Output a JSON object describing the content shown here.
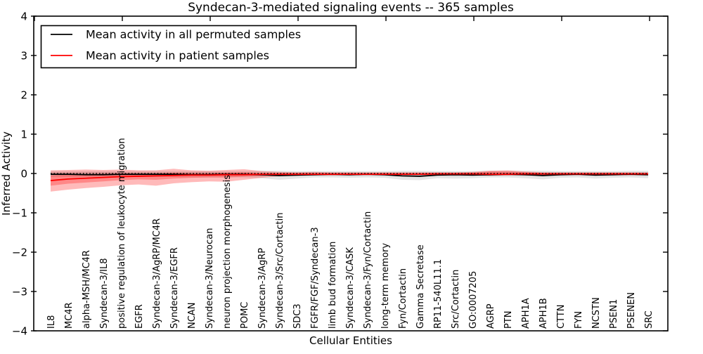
{
  "chart_data": {
    "type": "line",
    "title": "Syndecan-3-mediated signaling events -- 365 samples",
    "xlabel": "Cellular Entities",
    "ylabel": "Inferred Activity",
    "ylim": [
      -4,
      4
    ],
    "grid": false,
    "legend_position": "upper left",
    "yticks": [
      {
        "value": 4,
        "label": "4"
      },
      {
        "value": 3,
        "label": "3"
      },
      {
        "value": 2,
        "label": "2"
      },
      {
        "value": 1,
        "label": "1"
      },
      {
        "value": 0,
        "label": "0"
      },
      {
        "value": -1,
        "label": "−1"
      },
      {
        "value": -2,
        "label": "−2"
      },
      {
        "value": -3,
        "label": "−3"
      },
      {
        "value": -4,
        "label": "−4"
      }
    ],
    "categories": [
      "IL8",
      "MC4R",
      "alpha-MSH/MC4R",
      "Syndecan-3/IL8",
      "positive regulation of leukocyte migration",
      "EGFR",
      "Syndecan-3/AgRP/MC4R",
      "Syndecan-3/EGFR",
      "NCAN",
      "Syndecan-3/Neurocan",
      "neuron projection morphogenesis",
      "POMC",
      "Syndecan-3/AgRP",
      "Syndecan-3/Src/Cortactin",
      "SDC3",
      "FGFR/FGF/Syndecan-3",
      "limb bud formation",
      "Syndecan-3/CASK",
      "Syndecan-3/Fyn/Cortactin",
      "long-term memory",
      "Fyn/Cortactin",
      "Gamma Secretase",
      "RP11-540L11.1",
      "Src/Cortactin",
      "GO:0007205",
      "AGRP",
      "PTN",
      "APH1A",
      "APH1B",
      "CTTN",
      "FYN",
      "NCSTN",
      "PSEN1",
      "PSENEN",
      "SRC"
    ],
    "series": [
      {
        "id": "permuted-mean",
        "name": "Mean activity in all permuted samples",
        "color": "#000000",
        "values": [
          -0.02,
          -0.02,
          -0.03,
          -0.03,
          -0.02,
          -0.02,
          -0.02,
          -0.02,
          -0.03,
          -0.03,
          -0.02,
          -0.02,
          -0.03,
          -0.05,
          -0.04,
          -0.03,
          -0.02,
          -0.03,
          -0.02,
          -0.03,
          -0.06,
          -0.07,
          -0.04,
          -0.03,
          -0.04,
          -0.03,
          -0.02,
          -0.03,
          -0.05,
          -0.03,
          -0.02,
          -0.04,
          -0.03,
          -0.02,
          -0.03
        ]
      },
      {
        "id": "patient-mean",
        "name": "Mean activity in patient samples",
        "color": "#ff0000",
        "values": [
          -0.18,
          -0.14,
          -0.12,
          -0.1,
          -0.08,
          -0.07,
          -0.06,
          -0.05,
          -0.04,
          -0.04,
          -0.03,
          -0.03,
          -0.02,
          -0.02,
          -0.02,
          -0.02,
          -0.02,
          -0.02,
          -0.02,
          -0.02,
          -0.02,
          -0.02,
          -0.01,
          -0.01,
          -0.01,
          -0.02,
          -0.02,
          -0.01,
          -0.01,
          -0.01,
          -0.01,
          -0.01,
          -0.01,
          -0.01,
          -0.01
        ]
      }
    ],
    "bands": [
      {
        "name": "permuted-outer",
        "color": "rgba(0,0,0,0.10)",
        "upper": [
          0.06,
          0.06,
          0.06,
          0.06,
          0.06,
          0.06,
          0.06,
          0.06,
          0.06,
          0.06,
          0.06,
          0.06,
          0.07,
          0.07,
          0.06,
          0.06,
          0.06,
          0.06,
          0.06,
          0.06,
          0.07,
          0.07,
          0.06,
          0.06,
          0.06,
          0.07,
          0.07,
          0.07,
          0.07,
          0.06,
          0.06,
          0.06,
          0.06,
          0.07,
          0.07
        ],
        "lower": [
          -0.09,
          -0.09,
          -0.09,
          -0.09,
          -0.09,
          -0.09,
          -0.09,
          -0.09,
          -0.1,
          -0.1,
          -0.1,
          -0.1,
          -0.12,
          -0.16,
          -0.13,
          -0.1,
          -0.1,
          -0.11,
          -0.1,
          -0.11,
          -0.16,
          -0.17,
          -0.12,
          -0.13,
          -0.12,
          -0.1,
          -0.1,
          -0.12,
          -0.15,
          -0.11,
          -0.1,
          -0.13,
          -0.11,
          -0.1,
          -0.12
        ]
      },
      {
        "name": "permuted-inner",
        "color": "rgba(0,0,0,0.10)",
        "upper": [
          0.03,
          0.03,
          0.03,
          0.03,
          0.03,
          0.03,
          0.03,
          0.03,
          0.03,
          0.03,
          0.03,
          0.03,
          0.03,
          0.03,
          0.03,
          0.03,
          0.03,
          0.03,
          0.03,
          0.03,
          0.03,
          0.03,
          0.03,
          0.03,
          0.03,
          0.03,
          0.03,
          0.03,
          0.03,
          0.03,
          0.03,
          0.03,
          0.03,
          0.03,
          0.03
        ],
        "lower": [
          -0.05,
          -0.05,
          -0.05,
          -0.05,
          -0.05,
          -0.05,
          -0.05,
          -0.05,
          -0.05,
          -0.05,
          -0.05,
          -0.05,
          -0.06,
          -0.08,
          -0.07,
          -0.05,
          -0.05,
          -0.06,
          -0.05,
          -0.06,
          -0.08,
          -0.09,
          -0.06,
          -0.07,
          -0.06,
          -0.05,
          -0.05,
          -0.06,
          -0.08,
          -0.06,
          -0.05,
          -0.07,
          -0.06,
          -0.05,
          -0.06
        ]
      },
      {
        "name": "patient-outer",
        "color": "rgba(255,0,0,0.27)",
        "upper": [
          0.08,
          0.09,
          0.1,
          0.09,
          0.1,
          0.08,
          0.08,
          0.12,
          0.08,
          0.07,
          0.09,
          0.11,
          0.06,
          0.04,
          0.03,
          0.04,
          0.03,
          0.03,
          0.03,
          0.03,
          0.03,
          0.03,
          0.03,
          0.03,
          0.04,
          0.07,
          0.08,
          0.05,
          0.03,
          0.03,
          0.03,
          0.03,
          0.03,
          0.03,
          0.03
        ],
        "lower": [
          -0.46,
          -0.41,
          -0.37,
          -0.34,
          -0.3,
          -0.28,
          -0.31,
          -0.25,
          -0.22,
          -0.2,
          -0.21,
          -0.16,
          -0.11,
          -0.07,
          -0.06,
          -0.05,
          -0.05,
          -0.04,
          -0.04,
          -0.04,
          -0.04,
          -0.04,
          -0.04,
          -0.04,
          -0.04,
          -0.06,
          -0.05,
          -0.04,
          -0.04,
          -0.04,
          -0.04,
          -0.04,
          -0.04,
          -0.04,
          -0.04
        ]
      },
      {
        "name": "patient-inner",
        "color": "rgba(255,0,0,0.27)",
        "upper": [
          -0.05,
          -0.03,
          -0.02,
          -0.01,
          0.0,
          0.0,
          0.0,
          0.02,
          0.01,
          0.01,
          0.02,
          0.03,
          0.01,
          0.01,
          0.01,
          0.01,
          0.01,
          0.01,
          0.01,
          0.01,
          0.01,
          0.01,
          0.01,
          0.01,
          0.02,
          0.05,
          0.05,
          0.03,
          0.01,
          0.01,
          0.01,
          0.01,
          0.01,
          0.01,
          0.01
        ],
        "lower": [
          -0.31,
          -0.26,
          -0.23,
          -0.2,
          -0.17,
          -0.15,
          -0.16,
          -0.13,
          -0.11,
          -0.1,
          -0.1,
          -0.08,
          -0.06,
          -0.04,
          -0.04,
          -0.03,
          -0.03,
          -0.03,
          -0.03,
          -0.03,
          -0.03,
          -0.03,
          -0.03,
          -0.03,
          -0.03,
          -0.04,
          -0.04,
          -0.03,
          -0.03,
          -0.03,
          -0.03,
          -0.03,
          -0.03,
          -0.03,
          -0.03
        ]
      }
    ],
    "zero_line": {
      "y": 0,
      "style": "dotted",
      "color": "#000000"
    }
  }
}
